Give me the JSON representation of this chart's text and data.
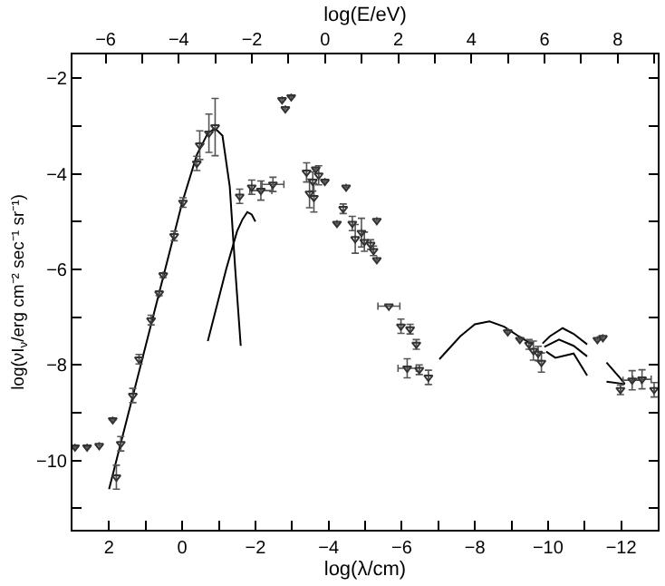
{
  "chart_data": {
    "type": "line",
    "xlabel": "log(λ/cm)",
    "ylabel": "log(νI$_{ν}$/erg cm⁻² sec⁻¹ sr⁻¹)",
    "x2label": "log(E/eV)",
    "xlim": [
      3,
      -13
    ],
    "xticks": [
      {
        "value": 3,
        "label": null
      },
      2,
      {
        "value": 1,
        "label": null
      },
      0,
      {
        "value": -1,
        "label": null
      },
      -2,
      {
        "value": -3,
        "label": null
      },
      -4,
      {
        "value": -5,
        "label": null
      },
      -6,
      {
        "value": -7,
        "label": null
      },
      -8,
      {
        "value": -9,
        "label": null
      },
      -10,
      {
        "value": -11,
        "label": null
      },
      -12
    ],
    "x2lim": [
      -6.906,
      9.094
    ],
    "x2ticks": [
      -6,
      {
        "value": -5,
        "label": null
      },
      -4,
      {
        "value": -3,
        "label": null
      },
      -2,
      {
        "value": -1,
        "label": null
      },
      0,
      {
        "value": 1,
        "label": null
      },
      2,
      {
        "value": 3,
        "label": null
      },
      4,
      {
        "value": 5,
        "label": null
      },
      6,
      {
        "value": 7,
        "label": null
      },
      8,
      {
        "value": 9,
        "label": null
      }
    ],
    "ylim": [
      -11.45,
      -1.5
    ],
    "yticks": [
      -2,
      {
        "value": -3,
        "label": null
      },
      -4,
      {
        "value": -5,
        "label": null
      },
      -6,
      {
        "value": -7,
        "label": null
      },
      -8,
      {
        "value": -9,
        "label": null
      },
      -10,
      {
        "value": -11,
        "label": null
      }
    ],
    "grid": false,
    "line_style": "solid",
    "series": [
      {
        "color": "#000000",
        "x": [
          2,
          1.5,
          1,
          0.5,
          0,
          -0.4,
          -0.7,
          -0.9,
          -1.1,
          -1.3,
          -1.45,
          -1.6
        ],
        "values": [
          -10.6,
          -9.1,
          -7.6,
          -6.1,
          -4.6,
          -3.6,
          -3.15,
          -3.05,
          -3.2,
          -4.27,
          -6,
          -7.6
        ]
      },
      {
        "color": "#000000",
        "x": [
          -0.7,
          -1.2,
          -1.5,
          -1.65,
          -1.78,
          -1.9,
          -2.0
        ],
        "values": [
          -7.5,
          -6.0,
          -5.2,
          -4.95,
          -4.8,
          -4.85,
          -5.0
        ]
      },
      {
        "color": "#000000",
        "x": [
          -7.03,
          -7.6,
          -8.0,
          -8.4,
          -8.8,
          -9.2,
          -9.57
        ],
        "values": [
          -7.88,
          -7.4,
          -7.15,
          -7.09,
          -7.2,
          -7.4,
          -7.57
        ]
      },
      {
        "color": "#000000",
        "x": [
          -9.85,
          -10.05,
          -10.4,
          -10.7,
          -11.07
        ],
        "values": [
          -7.55,
          -7.4,
          -7.23,
          -7.35,
          -7.57
        ]
      },
      {
        "color": "#000000",
        "x": [
          -9.9,
          -10.3,
          -10.7,
          -11.07
        ],
        "values": [
          -7.62,
          -7.47,
          -7.6,
          -7.82
        ]
      },
      {
        "color": "#000000",
        "x": [
          -9.95,
          -10.2,
          -10.7,
          -11.07
        ],
        "values": [
          -7.72,
          -7.85,
          -7.76,
          -8.22
        ]
      },
      {
        "color": "#000000",
        "x": [
          -11.6,
          -12.0,
          -12.1
        ],
        "values": [
          -7.95,
          -8.3,
          -8.4
        ]
      },
      {
        "color": "#000000",
        "x": [
          -11.6,
          -12.1
        ],
        "values": [
          -8.35,
          -8.4
        ]
      },
      {
        "type": "scatter",
        "color": "#333333",
        "marker": "triangle",
        "x": [
          1.8,
          1.68,
          1.35,
          1.18,
          0.85,
          0.63,
          0.52,
          0.22,
          -0.02,
          -0.4,
          -0.48,
          -0.73,
          -0.9,
          2.93,
          2.6,
          2.27,
          1.9,
          -1.57,
          -1.9,
          -2.15,
          -2.48,
          -2.73,
          -2.98,
          -2.82,
          -3.4,
          -3.57,
          -3.65,
          -3.73,
          -3.48,
          -3.9,
          -3.6,
          -4.48,
          -4.23,
          -4.4,
          -4.65,
          -4.73,
          -4.9,
          -4.98,
          -5.15,
          -5.23,
          -5.32,
          -5.32,
          -5.65,
          -5.98,
          -6.23,
          -6.4,
          -6.15,
          -6.48,
          -6.73,
          -8.9,
          -9.23,
          -9.48,
          -9.73,
          -9.82,
          -9.6,
          -11.35,
          -11.5,
          -11.98,
          -12.57,
          -12.9,
          -12.3
        ],
        "values": [
          -10.35,
          -9.65,
          -8.64,
          -7.88,
          -7.06,
          -6.5,
          -6.12,
          -5.3,
          -4.6,
          -3.78,
          -3.4,
          -3.15,
          -3.02,
          -9.72,
          -9.72,
          -9.69,
          -9.15,
          -4.47,
          -4.28,
          -4.35,
          -4.22,
          -2.45,
          -2.39,
          -2.64,
          -3.97,
          -4.16,
          -3.9,
          -4.03,
          -4.41,
          -4.16,
          -4.5,
          -4.28,
          -5.04,
          -4.73,
          -5.04,
          -5.36,
          -5.23,
          -5.42,
          -5.48,
          -5.61,
          -5.8,
          -4.98,
          -6.77,
          -7.19,
          -7.25,
          -7.57,
          -8.07,
          -8.1,
          -8.26,
          -7.31,
          -7.47,
          -7.57,
          -7.76,
          -7.95,
          -7.7,
          -7.47,
          -7.43,
          -8.52,
          -8.3,
          -8.52,
          -8.32
        ],
        "errors": [
          0.25,
          0.15,
          0.15,
          0.1,
          0.1,
          0.05,
          0.05,
          0.1,
          0.1,
          0.15,
          0.3,
          0.4,
          0.6,
          null,
          null,
          null,
          null,
          0.15,
          0.15,
          0.2,
          0.15,
          null,
          null,
          null,
          0.2,
          0.2,
          null,
          0.2,
          0.3,
          null,
          0.3,
          null,
          null,
          0.1,
          0.15,
          0.3,
          0.3,
          0.2,
          0.1,
          0.1,
          null,
          null,
          null,
          0.15,
          0.1,
          0.1,
          0.2,
          0.1,
          0.15,
          null,
          null,
          0.1,
          0.15,
          0.2,
          0.2,
          null,
          null,
          0.1,
          0.2,
          0.15,
          0.2
        ],
        "xerrors": [
          null,
          null,
          null,
          null,
          null,
          null,
          null,
          null,
          null,
          null,
          null,
          null,
          null,
          null,
          null,
          null,
          null,
          null,
          null,
          0.3,
          0.3,
          null,
          null,
          null,
          null,
          null,
          null,
          null,
          null,
          null,
          null,
          null,
          null,
          null,
          null,
          null,
          null,
          null,
          null,
          null,
          null,
          null,
          0.3,
          null,
          null,
          null,
          0.25,
          null,
          null,
          null,
          null,
          null,
          null,
          null,
          null,
          null,
          null,
          null,
          0.25,
          null,
          0.25
        ]
      }
    ]
  }
}
